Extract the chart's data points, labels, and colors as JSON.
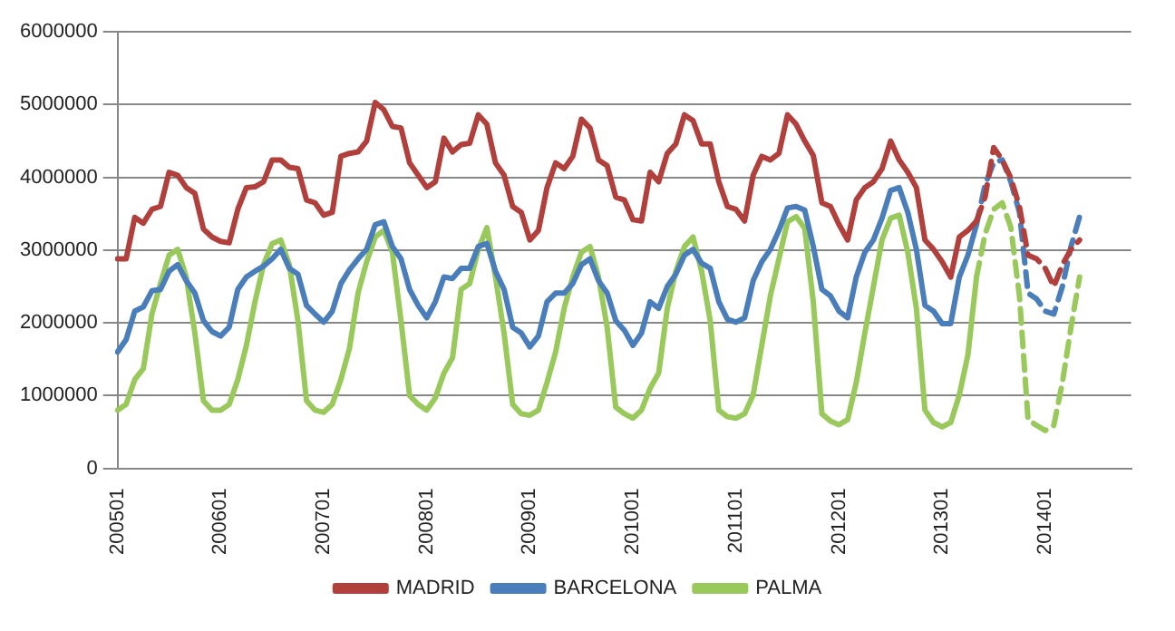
{
  "chart_data": {
    "type": "line",
    "categories": [
      "200501",
      null,
      null,
      null,
      null,
      null,
      null,
      null,
      null,
      null,
      null,
      null,
      "200601",
      null,
      null,
      null,
      null,
      null,
      null,
      null,
      null,
      null,
      null,
      null,
      "200701",
      null,
      null,
      null,
      null,
      null,
      null,
      null,
      null,
      null,
      null,
      null,
      "200801",
      null,
      null,
      null,
      null,
      null,
      null,
      null,
      null,
      null,
      null,
      null,
      "200901",
      null,
      null,
      null,
      null,
      null,
      null,
      null,
      null,
      null,
      null,
      null,
      "201001",
      null,
      null,
      null,
      null,
      null,
      null,
      null,
      null,
      null,
      null,
      null,
      "201101",
      null,
      null,
      null,
      null,
      null,
      null,
      null,
      null,
      null,
      null,
      null,
      "201201",
      null,
      null,
      null,
      null,
      null,
      null,
      null,
      null,
      null,
      null,
      null,
      "201301",
      null,
      null,
      null,
      null,
      null,
      null,
      null,
      null,
      null,
      null,
      null,
      "201401",
      null,
      null,
      null,
      null,
      null,
      null,
      null,
      null,
      null,
      null
    ],
    "series": [
      {
        "name": "MADRID",
        "color": "#b1403c",
        "line_style": "solid",
        "values": [
          2880000,
          2880000,
          3450000,
          3370000,
          3560000,
          3600000,
          4070000,
          4030000,
          3860000,
          3780000,
          3290000,
          3180000,
          3120000,
          3100000,
          3560000,
          3860000,
          3870000,
          3940000,
          4240000,
          4240000,
          4140000,
          4120000,
          3690000,
          3650000,
          3480000,
          3520000,
          4290000,
          4330000,
          4350000,
          4500000,
          5030000,
          4930000,
          4700000,
          4680000,
          4200000,
          4030000,
          3860000,
          3940000,
          4540000,
          4350000,
          4450000,
          4470000,
          4860000,
          4730000,
          4200000,
          4030000,
          3600000,
          3520000,
          3140000,
          3270000,
          3860000,
          4200000,
          4120000,
          4290000,
          4800000,
          4680000,
          4240000,
          4160000,
          3730000,
          3690000,
          3420000,
          3400000,
          4070000,
          3940000,
          4330000,
          4460000,
          4860000,
          4780000,
          4460000,
          4460000,
          3940000,
          3600000,
          3560000,
          3400000,
          4030000,
          4290000,
          4240000,
          4330000,
          4860000,
          4730000,
          4500000,
          4300000,
          3650000,
          3600000,
          3350000,
          3140000,
          3690000,
          3860000,
          3940000,
          4120000,
          4500000,
          4240000,
          4070000,
          3860000,
          3140000,
          3010000,
          2840000,
          2630000,
          3180000,
          3270000,
          3400000,
          null,
          null,
          null,
          null,
          null,
          null,
          null,
          null,
          null,
          null,
          null,
          null,
          null,
          null,
          null,
          null,
          null,
          null
        ]
      },
      {
        "name": "BARCELONA",
        "color": "#4a7ebb",
        "line_style": "solid",
        "values": [
          1600000,
          1770000,
          2160000,
          2220000,
          2440000,
          2460000,
          2710000,
          2800000,
          2580000,
          2410000,
          2030000,
          1880000,
          1820000,
          1940000,
          2460000,
          2630000,
          2710000,
          2780000,
          2880000,
          3010000,
          2750000,
          2670000,
          2240000,
          2120000,
          2010000,
          2160000,
          2540000,
          2730000,
          2880000,
          3010000,
          3350000,
          3390000,
          3050000,
          2880000,
          2460000,
          2240000,
          2070000,
          2290000,
          2630000,
          2610000,
          2750000,
          2750000,
          3050000,
          3090000,
          2710000,
          2460000,
          1940000,
          1860000,
          1670000,
          1820000,
          2290000,
          2410000,
          2410000,
          2540000,
          2800000,
          2880000,
          2580000,
          2410000,
          2030000,
          1900000,
          1690000,
          1860000,
          2290000,
          2200000,
          2500000,
          2670000,
          2930000,
          3010000,
          2820000,
          2750000,
          2290000,
          2050000,
          2010000,
          2070000,
          2580000,
          2840000,
          3010000,
          3270000,
          3580000,
          3600000,
          3550000,
          3050000,
          2460000,
          2370000,
          2160000,
          2070000,
          2630000,
          2970000,
          3140000,
          3440000,
          3820000,
          3860000,
          3520000,
          3010000,
          2240000,
          2160000,
          1990000,
          1990000,
          2630000,
          2930000,
          3350000,
          null,
          null,
          null,
          null,
          null,
          null,
          null,
          null,
          null,
          null,
          null,
          null,
          null,
          null,
          null,
          null,
          null,
          null
        ]
      },
      {
        "name": "PALMA",
        "color": "#98c95a",
        "line_style": "solid",
        "values": [
          800000,
          880000,
          1220000,
          1370000,
          2120000,
          2540000,
          2930000,
          3010000,
          2630000,
          1860000,
          930000,
          800000,
          800000,
          880000,
          1220000,
          1690000,
          2290000,
          2800000,
          3090000,
          3140000,
          2800000,
          2030000,
          930000,
          800000,
          770000,
          880000,
          1220000,
          1650000,
          2410000,
          2840000,
          3180000,
          3270000,
          2970000,
          2030000,
          1000000,
          880000,
          800000,
          970000,
          1310000,
          1520000,
          2460000,
          2540000,
          3010000,
          3310000,
          2630000,
          1860000,
          880000,
          750000,
          730000,
          800000,
          1180000,
          1600000,
          2200000,
          2630000,
          2970000,
          3050000,
          2630000,
          1940000,
          840000,
          750000,
          690000,
          800000,
          1100000,
          1310000,
          2200000,
          2710000,
          3050000,
          3180000,
          2710000,
          2030000,
          800000,
          710000,
          690000,
          750000,
          1010000,
          1690000,
          2370000,
          2880000,
          3390000,
          3460000,
          3300000,
          2290000,
          750000,
          650000,
          600000,
          670000,
          1180000,
          1860000,
          2500000,
          3140000,
          3440000,
          3480000,
          2970000,
          2200000,
          800000,
          630000,
          570000,
          630000,
          1010000,
          1560000,
          2630000,
          null,
          null,
          null,
          null,
          null,
          null,
          null,
          null,
          null,
          null,
          null,
          null,
          null,
          null,
          null,
          null,
          null,
          null
        ]
      },
      {
        "color": "#b1403c",
        "line_style": "dashed",
        "values": [
          null,
          null,
          null,
          null,
          null,
          null,
          null,
          null,
          null,
          null,
          null,
          null,
          null,
          null,
          null,
          null,
          null,
          null,
          null,
          null,
          null,
          null,
          null,
          null,
          null,
          null,
          null,
          null,
          null,
          null,
          null,
          null,
          null,
          null,
          null,
          null,
          null,
          null,
          null,
          null,
          null,
          null,
          null,
          null,
          null,
          null,
          null,
          null,
          null,
          null,
          null,
          null,
          null,
          null,
          null,
          null,
          null,
          null,
          null,
          null,
          null,
          null,
          null,
          null,
          null,
          null,
          null,
          null,
          null,
          null,
          null,
          null,
          null,
          null,
          null,
          null,
          null,
          null,
          null,
          null,
          null,
          null,
          null,
          null,
          null,
          null,
          null,
          null,
          null,
          null,
          null,
          null,
          null,
          null,
          null,
          null,
          null,
          null,
          null,
          null,
          3400000,
          3730000,
          4410000,
          4240000,
          3990000,
          3600000,
          2930000,
          2880000,
          2750000,
          2500000,
          2800000,
          3010000,
          3140000,
          null,
          null,
          null,
          null,
          null,
          null
        ]
      },
      {
        "color": "#4a7ebb",
        "line_style": "dashed",
        "values": [
          null,
          null,
          null,
          null,
          null,
          null,
          null,
          null,
          null,
          null,
          null,
          null,
          null,
          null,
          null,
          null,
          null,
          null,
          null,
          null,
          null,
          null,
          null,
          null,
          null,
          null,
          null,
          null,
          null,
          null,
          null,
          null,
          null,
          null,
          null,
          null,
          null,
          null,
          null,
          null,
          null,
          null,
          null,
          null,
          null,
          null,
          null,
          null,
          null,
          null,
          null,
          null,
          null,
          null,
          null,
          null,
          null,
          null,
          null,
          null,
          null,
          null,
          null,
          null,
          null,
          null,
          null,
          null,
          null,
          null,
          null,
          null,
          null,
          null,
          null,
          null,
          null,
          null,
          null,
          null,
          null,
          null,
          null,
          null,
          null,
          null,
          null,
          null,
          null,
          null,
          null,
          null,
          null,
          null,
          null,
          null,
          null,
          null,
          null,
          null,
          3350000,
          3900000,
          4200000,
          4240000,
          3940000,
          3520000,
          2410000,
          2330000,
          2160000,
          2120000,
          2500000,
          3050000,
          3460000,
          null,
          null,
          null,
          null,
          null,
          null
        ]
      },
      {
        "color": "#98c95a",
        "line_style": "dashed",
        "values": [
          null,
          null,
          null,
          null,
          null,
          null,
          null,
          null,
          null,
          null,
          null,
          null,
          null,
          null,
          null,
          null,
          null,
          null,
          null,
          null,
          null,
          null,
          null,
          null,
          null,
          null,
          null,
          null,
          null,
          null,
          null,
          null,
          null,
          null,
          null,
          null,
          null,
          null,
          null,
          null,
          null,
          null,
          null,
          null,
          null,
          null,
          null,
          null,
          null,
          null,
          null,
          null,
          null,
          null,
          null,
          null,
          null,
          null,
          null,
          null,
          null,
          null,
          null,
          null,
          null,
          null,
          null,
          null,
          null,
          null,
          null,
          null,
          null,
          null,
          null,
          null,
          null,
          null,
          null,
          null,
          null,
          null,
          null,
          null,
          null,
          null,
          null,
          null,
          null,
          null,
          null,
          null,
          null,
          null,
          null,
          null,
          null,
          null,
          null,
          null,
          2630000,
          3220000,
          3560000,
          3650000,
          3310000,
          2370000,
          670000,
          590000,
          520000,
          590000,
          1180000,
          1940000,
          2630000,
          null,
          null,
          null,
          null,
          null,
          null
        ]
      }
    ],
    "ylim": [
      0,
      6000000
    ],
    "yticks": [
      0,
      1000000,
      2000000,
      3000000,
      4000000,
      5000000,
      6000000
    ],
    "grid": "y",
    "legend": "bottom",
    "marker": "none"
  }
}
